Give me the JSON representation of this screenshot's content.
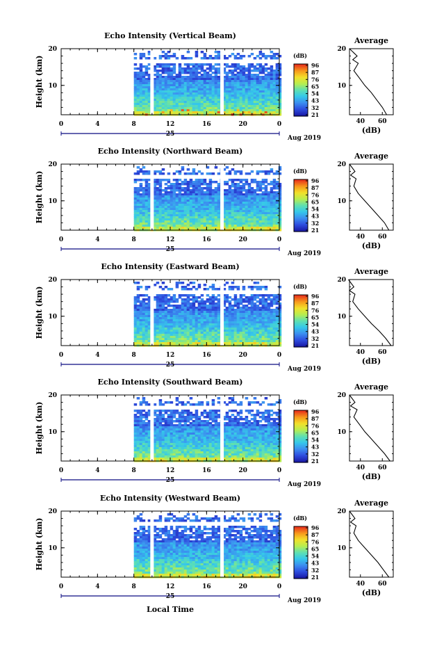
{
  "figure": {
    "xlabel": "Local Time",
    "date_day": "25",
    "date_month_year": "Aug 2019",
    "ylabel": "Height (km)",
    "colorbar_unit": "(dB)",
    "colorbar_ticks": [
      "96",
      "87",
      "76",
      "65",
      "54",
      "43",
      "32",
      "21"
    ],
    "colormap": [
      "#1a1aa8",
      "#2f4fe0",
      "#3c8ff0",
      "#35c8ea",
      "#5fe0b0",
      "#b8ee50",
      "#f2e02a",
      "#f79a1c",
      "#e8321c"
    ],
    "x_ticks": [
      "0",
      "4",
      "8",
      "12",
      "16",
      "20",
      "0"
    ],
    "y_ticks": [
      "20",
      "10"
    ],
    "avg_title": "Average",
    "avg_xlabel": "(dB)",
    "avg_x_ticks": [
      "40",
      "60"
    ]
  },
  "chart_data": [
    {
      "type": "heatmap",
      "title": "Echo Intensity (Vertical Beam)",
      "xlim": [
        0,
        24
      ],
      "ylim": [
        2,
        20
      ],
      "clim": [
        21,
        96
      ],
      "data_start_hour": 8,
      "gaps_hours": [
        10,
        17.7
      ],
      "profile_height_km": [
        2,
        4,
        6,
        8,
        10,
        12,
        14,
        16,
        17,
        18,
        20
      ],
      "profile_db": [
        64,
        60,
        55,
        50,
        44,
        39,
        34,
        38,
        33,
        37,
        30
      ]
    },
    {
      "type": "heatmap",
      "title": "Echo Intensity (Northward Beam)",
      "xlim": [
        0,
        24
      ],
      "ylim": [
        2,
        20
      ],
      "clim": [
        21,
        96
      ],
      "data_start_hour": 8,
      "gaps_hours": [
        10,
        17.7
      ],
      "profile_height_km": [
        2,
        4,
        6,
        8,
        10,
        12,
        14,
        16,
        17,
        18,
        20
      ],
      "profile_db": [
        66,
        62,
        56,
        50,
        44,
        38,
        34,
        36,
        31,
        35,
        30
      ]
    },
    {
      "type": "heatmap",
      "title": "Echo Intensity (Eastward Beam)",
      "xlim": [
        0,
        24
      ],
      "ylim": [
        2,
        20
      ],
      "clim": [
        21,
        96
      ],
      "data_start_hour": 8,
      "gaps_hours": [
        10,
        17.7
      ],
      "profile_height_km": [
        2,
        4,
        6,
        8,
        10,
        12,
        14,
        16,
        17,
        18,
        20
      ],
      "profile_db": [
        68,
        63,
        57,
        50,
        44,
        38,
        33,
        35,
        30,
        34,
        29
      ]
    },
    {
      "type": "heatmap",
      "title": "Echo Intensity (Southward Beam)",
      "xlim": [
        0,
        24
      ],
      "ylim": [
        2,
        20
      ],
      "clim": [
        21,
        96
      ],
      "data_start_hour": 8,
      "gaps_hours": [
        10,
        17.7
      ],
      "profile_height_km": [
        2,
        4,
        6,
        8,
        10,
        12,
        14,
        16,
        17,
        18,
        20
      ],
      "profile_db": [
        67,
        62,
        56,
        50,
        44,
        39,
        34,
        37,
        31,
        35,
        30
      ]
    },
    {
      "type": "heatmap",
      "title": "Echo Intensity (Westward Beam)",
      "xlim": [
        0,
        24
      ],
      "ylim": [
        2,
        20
      ],
      "clim": [
        21,
        96
      ],
      "data_start_hour": 8,
      "gaps_hours": [
        10,
        17.7
      ],
      "profile_height_km": [
        2,
        4,
        6,
        8,
        10,
        12,
        14,
        16,
        17,
        18,
        20
      ],
      "profile_db": [
        66,
        61,
        56,
        50,
        44,
        38,
        34,
        36,
        31,
        35,
        30
      ]
    }
  ]
}
